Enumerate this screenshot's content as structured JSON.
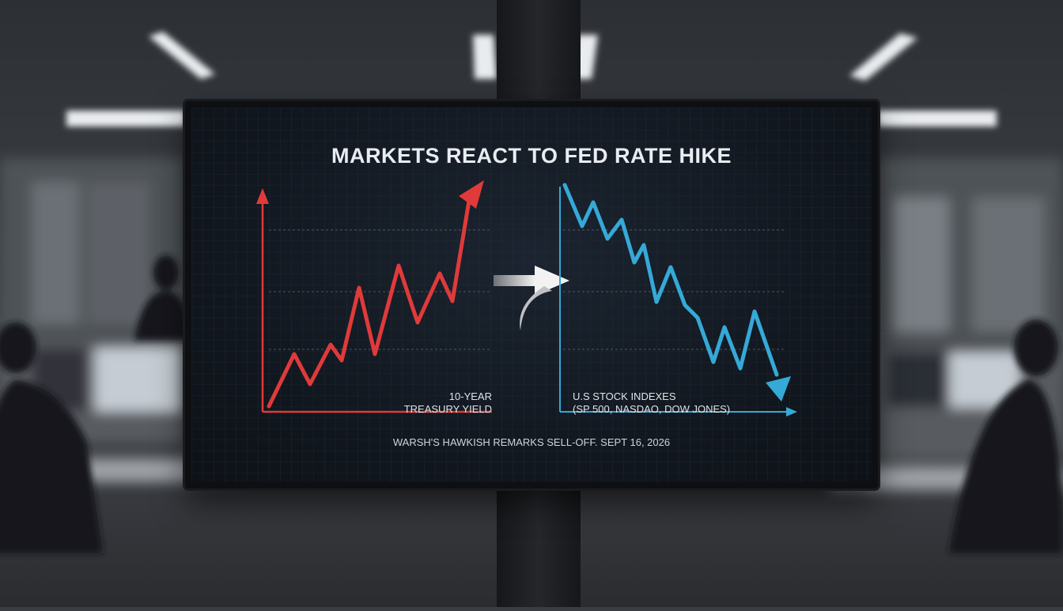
{
  "screen": {
    "title": "MARKETS REACT TO FED RATE HIKE",
    "caption": "WARSH'S HAWKISH REMARKS SELL-OFF. SEPT 16, 2026"
  },
  "left_chart": {
    "label_line1": "10-YEAR",
    "label_line2": "TREASURY YIELD",
    "line_color": "#e03a3a"
  },
  "right_chart": {
    "label_line1": "U.S STOCK INDEXES",
    "label_line2": "(SP 500, NASDAO, DOW JONES)",
    "line_color": "#35a9d8"
  },
  "colors": {
    "background": "#3a3d42",
    "screen_bg": "#121820",
    "arrow": "#d8d8d8"
  },
  "icons": {
    "transition": "curved-arrow-right-icon"
  }
}
